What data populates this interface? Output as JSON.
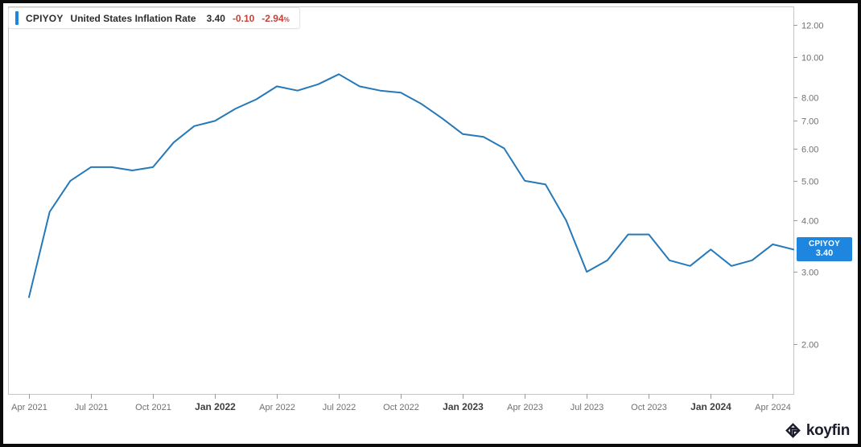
{
  "legend": {
    "ticker": "CPIYOY",
    "title": "United States Inflation Rate",
    "last": "3.40",
    "change": "-0.10",
    "change_pct": "-2.94",
    "pct_sign": "%"
  },
  "price_tag": {
    "ticker": "CPIYOY",
    "value": "3.40"
  },
  "watermark": {
    "brand": "koyfin"
  },
  "colors": {
    "line": "#2679b8",
    "accent_blue": "#1e86de",
    "negative_red": "#c2423a",
    "axis_text": "#6f6f6f",
    "axis_text_bold": "#3f3f3f",
    "frame_border": "#c6c6c6",
    "dark_text": "#2d2d2d",
    "logo_navy": "#1b1d2e"
  },
  "chart_data": {
    "type": "line",
    "title": "United States Inflation Rate",
    "ticker": "CPIYOY",
    "last_value": 3.4,
    "change": -0.1,
    "change_pct": "-2.94%",
    "y_scale": "log",
    "ylim": [
      1.51,
      13.3
    ],
    "grid": false,
    "legend_position": "top-left",
    "y_ticks": [
      12.0,
      10.0,
      8.0,
      7.0,
      6.0,
      5.0,
      4.0,
      3.0,
      2.0
    ],
    "x": [
      "Mar 2021",
      "Apr 2021",
      "May 2021",
      "Jun 2021",
      "Jul 2021",
      "Aug 2021",
      "Sep 2021",
      "Oct 2021",
      "Nov 2021",
      "Dec 2021",
      "Jan 2022",
      "Feb 2022",
      "Mar 2022",
      "Apr 2022",
      "May 2022",
      "Jun 2022",
      "Jul 2022",
      "Aug 2022",
      "Sep 2022",
      "Oct 2022",
      "Nov 2022",
      "Dec 2022",
      "Jan 2023",
      "Feb 2023",
      "Mar 2023",
      "Apr 2023",
      "May 2023",
      "Jun 2023",
      "Jul 2023",
      "Aug 2023",
      "Sep 2023",
      "Oct 2023",
      "Nov 2023",
      "Dec 2023",
      "Jan 2024",
      "Feb 2024",
      "Mar 2024",
      "Apr 2024"
    ],
    "series": [
      {
        "name": "CPIYOY",
        "values": [
          2.6,
          4.2,
          5.0,
          5.4,
          5.4,
          5.3,
          5.4,
          6.2,
          6.8,
          7.0,
          7.5,
          7.9,
          8.5,
          8.3,
          8.6,
          9.1,
          8.5,
          8.3,
          8.2,
          7.7,
          7.1,
          6.5,
          6.4,
          6.0,
          5.0,
          4.9,
          4.0,
          3.0,
          3.2,
          3.7,
          3.7,
          3.2,
          3.1,
          3.4,
          3.1,
          3.2,
          3.5,
          3.4
        ]
      }
    ],
    "x_tick_labels": [
      {
        "label": "Apr 2021",
        "i": 0,
        "bold": false
      },
      {
        "label": "Jul 2021",
        "i": 3,
        "bold": false
      },
      {
        "label": "Oct 2021",
        "i": 6,
        "bold": false
      },
      {
        "label": "Jan 2022",
        "i": 9,
        "bold": true
      },
      {
        "label": "Apr 2022",
        "i": 12,
        "bold": false
      },
      {
        "label": "Jul 2022",
        "i": 15,
        "bold": false
      },
      {
        "label": "Oct 2022",
        "i": 18,
        "bold": false
      },
      {
        "label": "Jan 2023",
        "i": 21,
        "bold": true
      },
      {
        "label": "Apr 2023",
        "i": 24,
        "bold": false
      },
      {
        "label": "Jul 2023",
        "i": 27,
        "bold": false
      },
      {
        "label": "Oct 2023",
        "i": 30,
        "bold": false
      },
      {
        "label": "Jan 2024",
        "i": 33,
        "bold": true
      },
      {
        "label": "Apr 2024",
        "i": 36,
        "bold": false
      }
    ]
  }
}
